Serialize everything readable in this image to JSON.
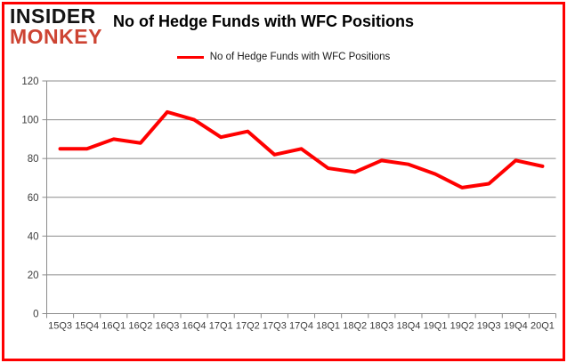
{
  "header": {
    "logo_line1": "INSIDER",
    "logo_line2": "MONKEY",
    "title": "No of Hedge Funds with WFC Positions"
  },
  "legend": {
    "label": "No of Hedge Funds with WFC Positions"
  },
  "colors": {
    "border": "#fe0000",
    "line": "#ff0000",
    "logo_black": "#141414",
    "logo_red": "#cd4433",
    "grid": "#8c8c8c",
    "axis_text": "#3d3d3d"
  },
  "chart_data": {
    "type": "line",
    "title": "No of Hedge Funds with WFC Positions",
    "categories": [
      "15Q3",
      "15Q4",
      "16Q1",
      "16Q2",
      "16Q3",
      "16Q4",
      "17Q1",
      "17Q2",
      "17Q3",
      "17Q4",
      "18Q1",
      "18Q2",
      "18Q3",
      "18Q4",
      "19Q1",
      "19Q2",
      "19Q3",
      "19Q4",
      "20Q1"
    ],
    "series": [
      {
        "name": "No of Hedge Funds with WFC Positions",
        "values": [
          85,
          85,
          90,
          88,
          104,
          100,
          91,
          94,
          82,
          85,
          75,
          73,
          79,
          77,
          72,
          65,
          67,
          79,
          76
        ]
      }
    ],
    "xlabel": "",
    "ylabel": "",
    "ylim": [
      0,
      120
    ],
    "yticks": [
      0,
      20,
      40,
      60,
      80,
      100,
      120
    ],
    "grid": true,
    "legend_position": "top-center"
  }
}
